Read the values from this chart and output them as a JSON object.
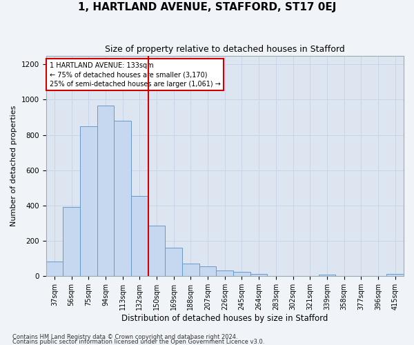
{
  "title": "1, HARTLAND AVENUE, STAFFORD, ST17 0EJ",
  "subtitle": "Size of property relative to detached houses in Stafford",
  "xlabel": "Distribution of detached houses by size in Stafford",
  "ylabel": "Number of detached properties",
  "footnote1": "Contains HM Land Registry data © Crown copyright and database right 2024.",
  "footnote2": "Contains public sector information licensed under the Open Government Licence v3.0.",
  "categories": [
    "37sqm",
    "56sqm",
    "75sqm",
    "94sqm",
    "113sqm",
    "132sqm",
    "150sqm",
    "169sqm",
    "188sqm",
    "207sqm",
    "226sqm",
    "245sqm",
    "264sqm",
    "283sqm",
    "302sqm",
    "321sqm",
    "339sqm",
    "358sqm",
    "377sqm",
    "396sqm",
    "415sqm"
  ],
  "values": [
    80,
    390,
    850,
    965,
    880,
    455,
    285,
    160,
    70,
    55,
    30,
    22,
    12,
    0,
    0,
    0,
    8,
    0,
    0,
    0,
    10
  ],
  "bar_color": "#c5d8ef",
  "bar_edge_color": "#6699cc",
  "vline_color": "#cc0000",
  "annotation_text": "1 HARTLAND AVENUE: 133sqm\n← 75% of detached houses are smaller (3,170)\n25% of semi-detached houses are larger (1,061) →",
  "annotation_box_color": "#ffffff",
  "annotation_box_edge": "#cc0000",
  "ylim": [
    0,
    1250
  ],
  "yticks": [
    0,
    200,
    400,
    600,
    800,
    1000,
    1200
  ],
  "grid_color": "#c8d4e8",
  "bg_color": "#dde6f0",
  "fig_bg_color": "#f0f4f8",
  "title_fontsize": 11,
  "subtitle_fontsize": 9,
  "tick_fontsize": 7,
  "ylabel_fontsize": 8,
  "xlabel_fontsize": 8.5,
  "footnote_fontsize": 6
}
